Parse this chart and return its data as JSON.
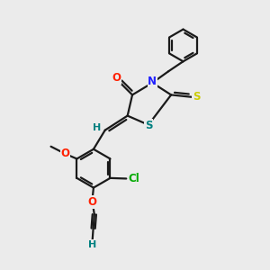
{
  "bg_color": "#ebebeb",
  "bond_color": "#1a1a1a",
  "atom_colors": {
    "O": "#ff2000",
    "N": "#2020ff",
    "S_thioxo": "#cccc00",
    "S_ring": "#008080",
    "Cl": "#00aa00",
    "H": "#008080",
    "methoxy_O": "#ff2000",
    "propargyl_O": "#ff2000"
  },
  "lw": 1.6,
  "fontsize": 8.5
}
